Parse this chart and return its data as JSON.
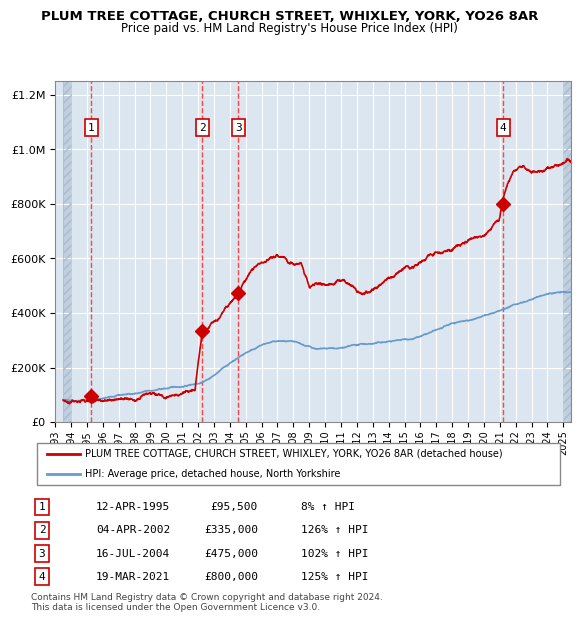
{
  "title": "PLUM TREE COTTAGE, CHURCH STREET, WHIXLEY, YORK, YO26 8AR",
  "subtitle": "Price paid vs. HM Land Registry's House Price Index (HPI)",
  "sales": [
    {
      "date_num": 1995.28,
      "price": 95500,
      "label": "1"
    },
    {
      "date_num": 2002.26,
      "price": 335000,
      "label": "2"
    },
    {
      "date_num": 2004.54,
      "price": 475000,
      "label": "3"
    },
    {
      "date_num": 2021.22,
      "price": 800000,
      "label": "4"
    }
  ],
  "legend_red": "PLUM TREE COTTAGE, CHURCH STREET, WHIXLEY, YORK, YO26 8AR (detached house)",
  "legend_blue": "HPI: Average price, detached house, North Yorkshire",
  "table": [
    {
      "num": "1",
      "date": "12-APR-1995",
      "price": "£95,500",
      "hpi": "8% ↑ HPI"
    },
    {
      "num": "2",
      "date": "04-APR-2002",
      "price": "£335,000",
      "hpi": "126% ↑ HPI"
    },
    {
      "num": "3",
      "date": "16-JUL-2004",
      "price": "£475,000",
      "hpi": "102% ↑ HPI"
    },
    {
      "num": "4",
      "date": "19-MAR-2021",
      "price": "£800,000",
      "hpi": "125% ↑ HPI"
    }
  ],
  "footnote": "Contains HM Land Registry data © Crown copyright and database right 2024.\nThis data is licensed under the Open Government Licence v3.0.",
  "red_color": "#cc0000",
  "blue_color": "#6699cc",
  "bg_plot": "#dce6f0",
  "bg_hatch": "#c0cfe0",
  "grid_color": "#ffffff",
  "dashed_color": "#ff4444",
  "ylim": [
    0,
    1250000
  ],
  "xlim_start": 1993.5,
  "xlim_end": 2025.5
}
